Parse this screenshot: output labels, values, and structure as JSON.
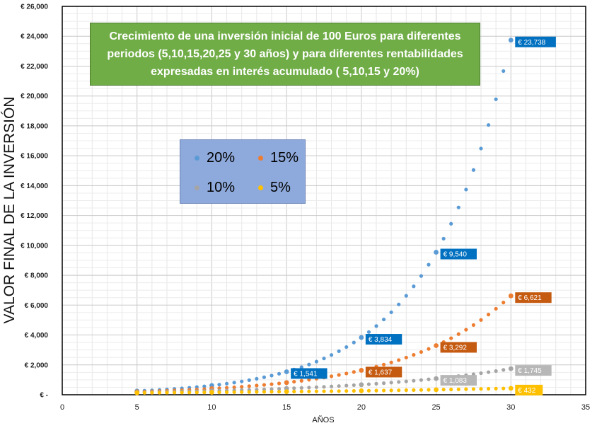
{
  "chart_data": {
    "type": "scatter",
    "title": "Crecimiento de una inversión inicial de 100 Euros para diferentes periodos (5,10,15,20,25 y 30 años) y para diferentes rentabilidades expresadas en interés acumulado ( 5,10,15 y 20%)",
    "xlabel": "AÑOS",
    "ylabel": "VALOR FINAL DE LA INVERSIÓN",
    "xlim": [
      0,
      35
    ],
    "ylim": [
      0,
      26000
    ],
    "x_ticks": [
      "0",
      "5",
      "10",
      "15",
      "20",
      "25",
      "30",
      "35"
    ],
    "y_ticks": [
      "€ -",
      "€ 2,000",
      "€ 4,000",
      "€ 6,000",
      "€ 8,000",
      "€ 10,000",
      "€ 12,000",
      "€ 14,000",
      "€ 16,000",
      "€ 18,000",
      "€ 20,000",
      "€ 22,000",
      "€ 24,000",
      "€ 26,000"
    ],
    "grid": true,
    "legend_position": "middle-left",
    "series": [
      {
        "name": "20%",
        "color": "#5b9bd5",
        "rate": 0.2,
        "x_start": 5,
        "x_end": 30,
        "step": 0.5
      },
      {
        "name": "15%",
        "color": "#ed7d31",
        "rate": 0.15,
        "x_start": 5,
        "x_end": 30,
        "step": 0.5
      },
      {
        "name": "10%",
        "color": "#a5a5a5",
        "rate": 0.1,
        "x_start": 5,
        "x_end": 30,
        "step": 0.5
      },
      {
        "name": "5%",
        "color": "#ffc000",
        "rate": 0.05,
        "x_start": 5,
        "x_end": 30,
        "step": 0.5
      }
    ],
    "data_labels": [
      {
        "x": 15,
        "y": 1541,
        "text": "€ 1,541",
        "color": "#0070c0",
        "text_color": "#ffffff"
      },
      {
        "x": 20,
        "y": 3834,
        "text": "€ 3,834",
        "color": "#0070c0",
        "text_color": "#ffffff"
      },
      {
        "x": 25,
        "y": 9540,
        "text": "€ 9,540",
        "color": "#0070c0",
        "text_color": "#ffffff"
      },
      {
        "x": 30,
        "y": 23738,
        "text": "€ 23,738",
        "color": "#0070c0",
        "text_color": "#ffffff"
      },
      {
        "x": 20,
        "y": 1637,
        "text": "€ 1,637",
        "color": "#c55a11",
        "text_color": "#ffffff"
      },
      {
        "x": 25,
        "y": 3292,
        "text": "€ 3,292",
        "color": "#c55a11",
        "text_color": "#ffffff"
      },
      {
        "x": 30,
        "y": 6621,
        "text": "€ 6,621",
        "color": "#c55a11",
        "text_color": "#ffffff"
      },
      {
        "x": 25,
        "y": 1083,
        "text": "€ 1,083",
        "color": "#b7b7b7",
        "text_color": "#ffffff"
      },
      {
        "x": 30,
        "y": 1745,
        "text": "€ 1,745",
        "color": "#b7b7b7",
        "text_color": "#ffffff"
      },
      {
        "x": 30,
        "y": 432,
        "text": "€ 432",
        "color": "#ffc000",
        "text_color": "#ffffff"
      }
    ]
  }
}
